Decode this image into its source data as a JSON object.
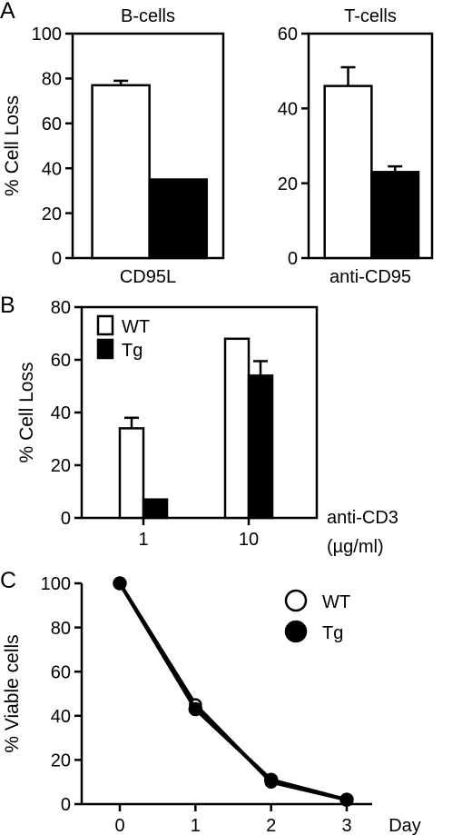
{
  "figure": {
    "panels": [
      {
        "id": "a",
        "letter": "A"
      },
      {
        "id": "b",
        "letter": "B"
      },
      {
        "id": "c",
        "letter": "C"
      }
    ]
  },
  "chart_data": [
    {
      "panel": "A",
      "type": "bar",
      "title": "B-cells",
      "ylabel": "% Cell Loss",
      "xlabel": "CD95L",
      "ylim": [
        0,
        100
      ],
      "yticks": [
        0,
        20,
        40,
        60,
        80,
        100
      ],
      "series": [
        {
          "color": "#ffffff",
          "value": 77,
          "error": 2
        },
        {
          "color": "#000000",
          "value": 35,
          "error": 0
        }
      ],
      "grid": false
    },
    {
      "panel": "A",
      "type": "bar",
      "title": "T-cells",
      "ylabel": "",
      "xlabel": "anti-CD95",
      "ylim": [
        0,
        60
      ],
      "yticks": [
        0,
        20,
        40,
        60
      ],
      "series": [
        {
          "color": "#ffffff",
          "value": 46,
          "error": 5
        },
        {
          "color": "#000000",
          "value": 23,
          "error": 1.5
        }
      ],
      "grid": false
    },
    {
      "panel": "B",
      "type": "bar",
      "title": "",
      "ylabel": "% Cell Loss",
      "xlabel": "anti-CD3",
      "xlabel_unit": "(µg/ml)",
      "ylim": [
        0,
        80
      ],
      "yticks": [
        0,
        20,
        40,
        60,
        80
      ],
      "categories": [
        "1",
        "10"
      ],
      "series": [
        {
          "name": "WT",
          "color": "#ffffff",
          "values": [
            34,
            68
          ],
          "errors": [
            4,
            0.5
          ]
        },
        {
          "name": "Tg",
          "color": "#000000",
          "values": [
            7,
            54
          ],
          "errors": [
            0,
            5.5
          ]
        }
      ],
      "legend": "top-left",
      "grid": false
    },
    {
      "panel": "C",
      "type": "line",
      "title": "",
      "ylabel": "% Viable cells",
      "xlabel": "Day",
      "xlim": [
        0,
        3
      ],
      "ylim": [
        0,
        100
      ],
      "xticks": [
        0,
        1,
        2,
        3
      ],
      "yticks": [
        0,
        20,
        40,
        60,
        80,
        100
      ],
      "series": [
        {
          "name": "WT",
          "marker": "open-circle",
          "x": [
            0,
            1,
            2,
            3
          ],
          "y": [
            100,
            45,
            10,
            2
          ]
        },
        {
          "name": "Tg",
          "marker": "filled-circle",
          "x": [
            0,
            1,
            2,
            3
          ],
          "y": [
            100,
            43,
            11,
            2
          ]
        }
      ],
      "legend": "top-right",
      "grid": false
    }
  ]
}
